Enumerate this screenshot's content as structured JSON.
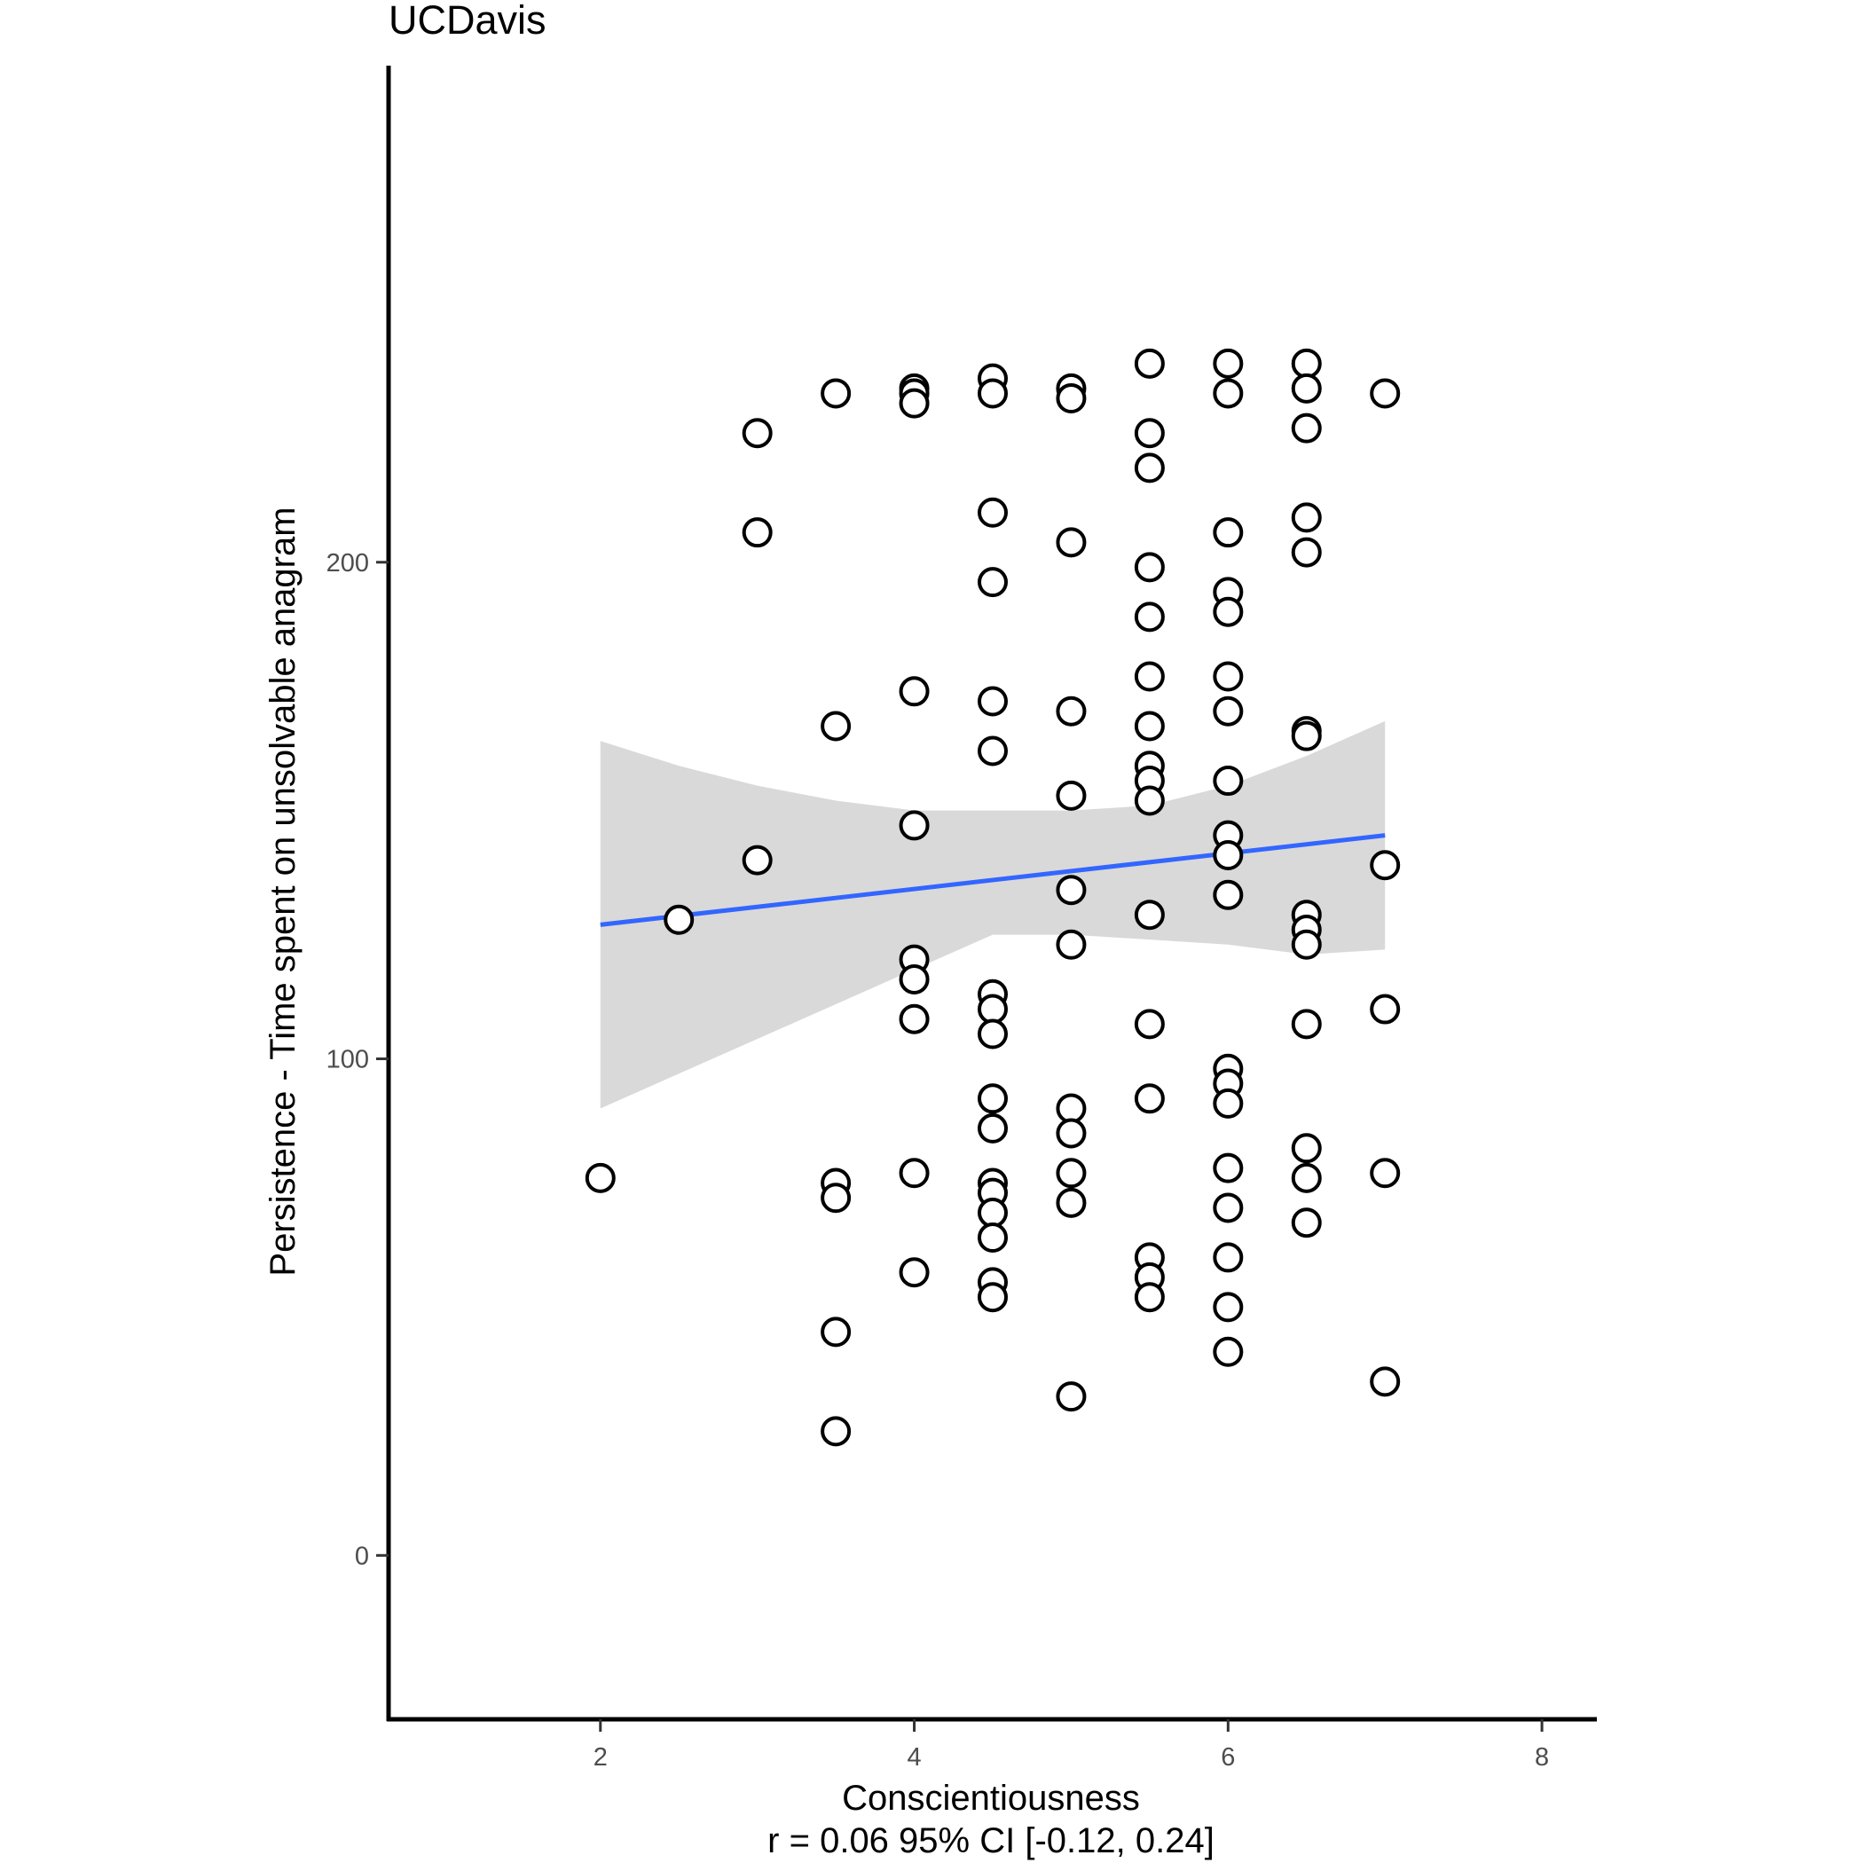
{
  "chart_data": {
    "type": "scatter",
    "title": "UCDavis",
    "xlabel": "Conscientiousness",
    "xlabel_sub": "r = 0.06 95% CI [-0.12, 0.24]",
    "ylabel": "Persistence - Time spent on unsolvable anagram",
    "xlim": [
      0.65,
      8.35
    ],
    "ylim": [
      -33,
      300
    ],
    "xticks": [
      2,
      4,
      6,
      8
    ],
    "yticks": [
      0,
      100,
      200
    ],
    "grid": false,
    "point_style": {
      "fill": "#ffffff",
      "stroke": "#000000"
    },
    "fit_line": {
      "x": [
        2,
        7
      ],
      "y": [
        127,
        145
      ],
      "color": "#3366FF"
    },
    "confidence_band": {
      "color": "#d9d9d9",
      "x": [
        2,
        2.5,
        3,
        3.5,
        4,
        4.5,
        5,
        5.5,
        6,
        6.5,
        7
      ],
      "upper": [
        164,
        159,
        155,
        152,
        150,
        150,
        150,
        151,
        155,
        161,
        168
      ],
      "lower": [
        90,
        97,
        104,
        111,
        118,
        125,
        125,
        124,
        123,
        121,
        122
      ]
    },
    "points": [
      {
        "x": 2,
        "y": 76
      },
      {
        "x": 2.5,
        "y": 128
      },
      {
        "x": 3,
        "y": 226
      },
      {
        "x": 3,
        "y": 206
      },
      {
        "x": 3,
        "y": 140
      },
      {
        "x": 3.5,
        "y": 234
      },
      {
        "x": 3.5,
        "y": 167
      },
      {
        "x": 3.5,
        "y": 75
      },
      {
        "x": 3.5,
        "y": 72
      },
      {
        "x": 3.5,
        "y": 45
      },
      {
        "x": 3.5,
        "y": 25
      },
      {
        "x": 4,
        "y": 235
      },
      {
        "x": 4,
        "y": 234
      },
      {
        "x": 4,
        "y": 232
      },
      {
        "x": 4,
        "y": 174
      },
      {
        "x": 4,
        "y": 147
      },
      {
        "x": 4,
        "y": 120
      },
      {
        "x": 4,
        "y": 116
      },
      {
        "x": 4,
        "y": 108
      },
      {
        "x": 4,
        "y": 77
      },
      {
        "x": 4,
        "y": 57
      },
      {
        "x": 4.5,
        "y": 237
      },
      {
        "x": 4.5,
        "y": 234
      },
      {
        "x": 4.5,
        "y": 210
      },
      {
        "x": 4.5,
        "y": 196
      },
      {
        "x": 4.5,
        "y": 172
      },
      {
        "x": 4.5,
        "y": 162
      },
      {
        "x": 4.5,
        "y": 113
      },
      {
        "x": 4.5,
        "y": 110
      },
      {
        "x": 4.5,
        "y": 105
      },
      {
        "x": 4.5,
        "y": 92
      },
      {
        "x": 4.5,
        "y": 86
      },
      {
        "x": 4.5,
        "y": 75
      },
      {
        "x": 4.5,
        "y": 73
      },
      {
        "x": 4.5,
        "y": 69
      },
      {
        "x": 4.5,
        "y": 64
      },
      {
        "x": 4.5,
        "y": 55
      },
      {
        "x": 4.5,
        "y": 52
      },
      {
        "x": 5,
        "y": 235
      },
      {
        "x": 5,
        "y": 233
      },
      {
        "x": 5,
        "y": 204
      },
      {
        "x": 5,
        "y": 170
      },
      {
        "x": 5,
        "y": 153
      },
      {
        "x": 5,
        "y": 134
      },
      {
        "x": 5,
        "y": 123
      },
      {
        "x": 5,
        "y": 90
      },
      {
        "x": 5,
        "y": 85
      },
      {
        "x": 5,
        "y": 77
      },
      {
        "x": 5,
        "y": 71
      },
      {
        "x": 5,
        "y": 32
      },
      {
        "x": 5.5,
        "y": 240
      },
      {
        "x": 5.5,
        "y": 226
      },
      {
        "x": 5.5,
        "y": 219
      },
      {
        "x": 5.5,
        "y": 199
      },
      {
        "x": 5.5,
        "y": 189
      },
      {
        "x": 5.5,
        "y": 177
      },
      {
        "x": 5.5,
        "y": 167
      },
      {
        "x": 5.5,
        "y": 159
      },
      {
        "x": 5.5,
        "y": 156
      },
      {
        "x": 5.5,
        "y": 152
      },
      {
        "x": 5.5,
        "y": 129
      },
      {
        "x": 5.5,
        "y": 107
      },
      {
        "x": 5.5,
        "y": 92
      },
      {
        "x": 5.5,
        "y": 60
      },
      {
        "x": 5.5,
        "y": 56
      },
      {
        "x": 5.5,
        "y": 52
      },
      {
        "x": 6,
        "y": 240
      },
      {
        "x": 6,
        "y": 234
      },
      {
        "x": 6,
        "y": 206
      },
      {
        "x": 6,
        "y": 194
      },
      {
        "x": 6,
        "y": 190
      },
      {
        "x": 6,
        "y": 177
      },
      {
        "x": 6,
        "y": 170
      },
      {
        "x": 6,
        "y": 156
      },
      {
        "x": 6,
        "y": 145
      },
      {
        "x": 6,
        "y": 141
      },
      {
        "x": 6,
        "y": 133
      },
      {
        "x": 6,
        "y": 98
      },
      {
        "x": 6,
        "y": 95
      },
      {
        "x": 6,
        "y": 91
      },
      {
        "x": 6,
        "y": 78
      },
      {
        "x": 6,
        "y": 70
      },
      {
        "x": 6,
        "y": 60
      },
      {
        "x": 6,
        "y": 50
      },
      {
        "x": 6,
        "y": 41
      },
      {
        "x": 6.5,
        "y": 240
      },
      {
        "x": 6.5,
        "y": 235
      },
      {
        "x": 6.5,
        "y": 227
      },
      {
        "x": 6.5,
        "y": 209
      },
      {
        "x": 6.5,
        "y": 202
      },
      {
        "x": 6.5,
        "y": 166
      },
      {
        "x": 6.5,
        "y": 165
      },
      {
        "x": 6.5,
        "y": 129
      },
      {
        "x": 6.5,
        "y": 126
      },
      {
        "x": 6.5,
        "y": 123
      },
      {
        "x": 6.5,
        "y": 107
      },
      {
        "x": 6.5,
        "y": 82
      },
      {
        "x": 6.5,
        "y": 76
      },
      {
        "x": 6.5,
        "y": 67
      },
      {
        "x": 7,
        "y": 234
      },
      {
        "x": 7,
        "y": 139
      },
      {
        "x": 7,
        "y": 110
      },
      {
        "x": 7,
        "y": 77
      },
      {
        "x": 7,
        "y": 35
      }
    ]
  }
}
